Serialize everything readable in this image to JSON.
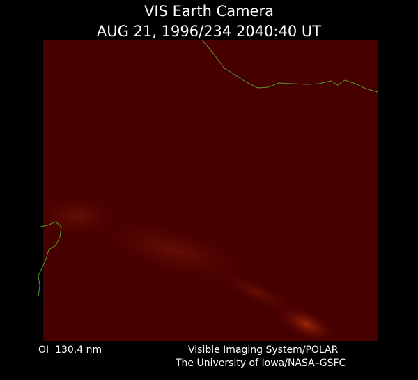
{
  "header": {
    "title": "VIS Earth Camera",
    "timestamp": "AUG 21, 1996/234 2040:40 UT"
  },
  "footer": {
    "filter": "OI  130.4 nm",
    "instrument": "Visible Imaging System/POLAR",
    "credit": "The University of Iowa/NASA–GSFC"
  }
}
